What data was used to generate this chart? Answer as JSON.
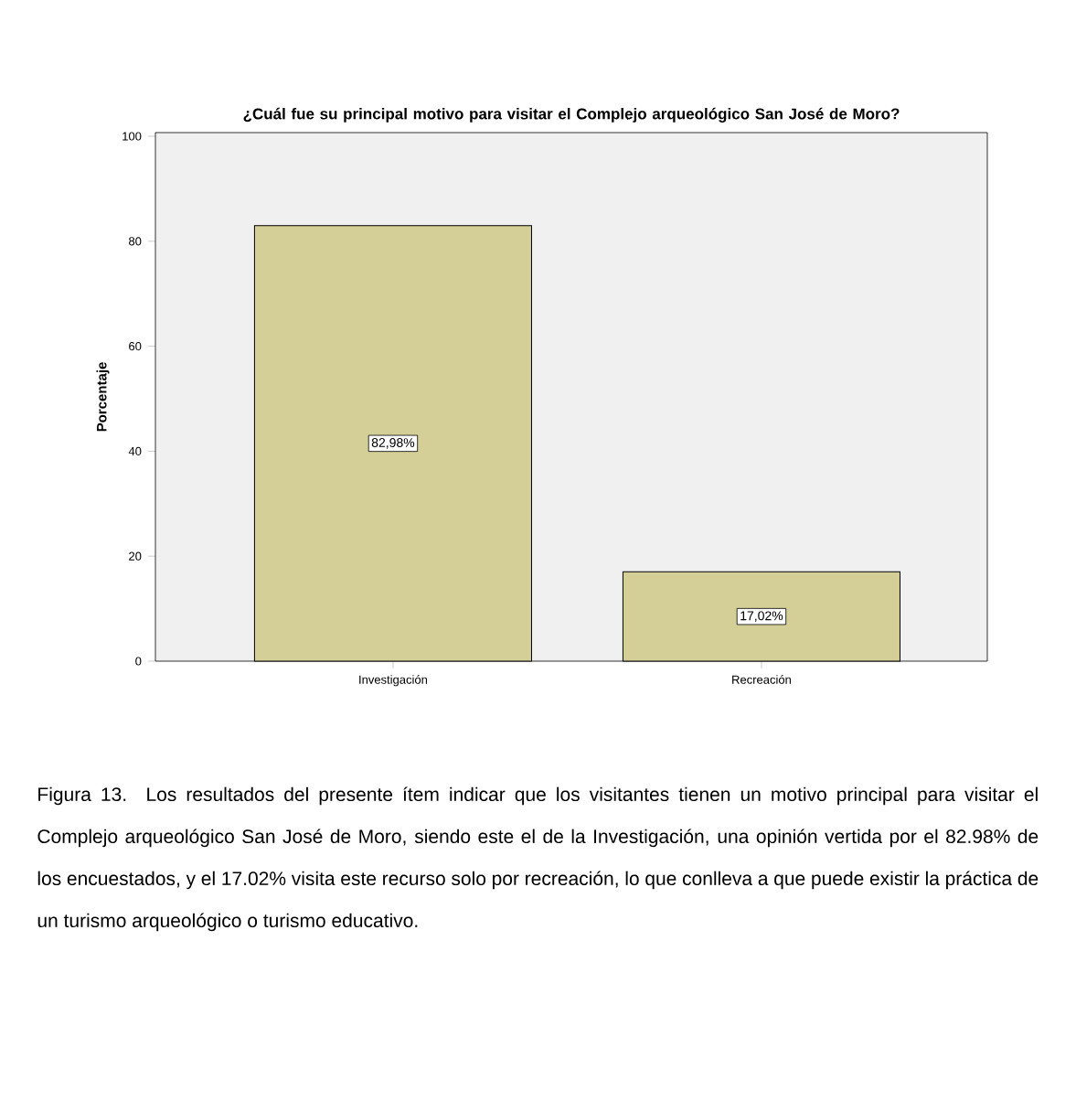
{
  "chart_data": {
    "type": "bar",
    "title": "¿Cuál fue su principal motivo para visitar el Complejo arqueológico San José de Moro?",
    "ylabel": "Porcentaje",
    "categories": [
      "Investigación",
      "Recreación"
    ],
    "values": [
      82.98,
      17.02
    ],
    "value_labels": [
      "82,98%",
      "17,02%"
    ],
    "color": "#d3cf97",
    "ylim": [
      0,
      100.7
    ],
    "yticks": [
      0,
      20,
      40,
      60,
      80,
      100
    ],
    "annotations": [
      "Figura 13. Los resultados del presente ítem indicar que los visitantes tienen un motivo principal para visitar el Complejo arqueológico San José de Moro, siendo este el de la Investigación, una opinión vertida por el 82.98% de los encuestados, y el 17.02% visita este recurso solo por recreación, lo que conlleva a que puede existir la práctica de un turismo arqueológico o turismo educativo."
    ]
  }
}
